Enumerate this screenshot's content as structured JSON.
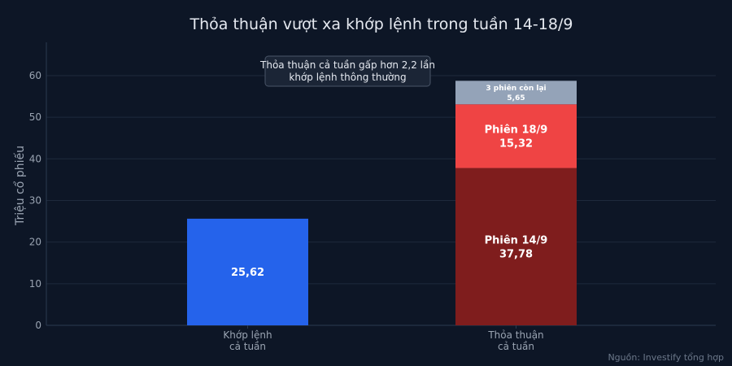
{
  "chart_data": {
    "type": "bar",
    "title": "Thỏa thuận vượt xa khớp lệnh trong tuần 14-18/9",
    "ylabel": "Triệu cổ phiếu",
    "xlabel": "",
    "ylim": [
      0,
      68
    ],
    "yticks": [
      0,
      10,
      20,
      30,
      40,
      50,
      60
    ],
    "grid": true,
    "categories": [
      [
        "Khớp lệnh",
        "cả tuần"
      ],
      [
        "Thỏa thuận",
        "cả tuần"
      ]
    ],
    "bars": [
      {
        "category_index": 0,
        "segments": [
          {
            "name": "",
            "value": 25.62,
            "label": "25,62",
            "color": "#2563eb"
          }
        ]
      },
      {
        "category_index": 1,
        "segments": [
          {
            "name": "Phiên 14/9",
            "value": 37.78,
            "label": "37,78",
            "color": "#7f1d1d"
          },
          {
            "name": "Phiên 18/9",
            "value": 15.32,
            "label": "15,32",
            "color": "#ef4444"
          },
          {
            "name": "3 phiên còn lại",
            "value": 5.65,
            "label": "5,65",
            "color": "#94a3b8"
          }
        ]
      }
    ],
    "annotation": [
      "Thỏa thuận cả tuần gấp hơn 2,2 lần",
      "khớp lệnh thông thường"
    ],
    "source": "Nguồn: Investify tổng hợp"
  },
  "colors": {
    "background": "#0d1626",
    "grid": "#1e2a3c",
    "axis": "#2b3a50",
    "text": "#e5e9f0",
    "muted": "#9aa4b2"
  }
}
